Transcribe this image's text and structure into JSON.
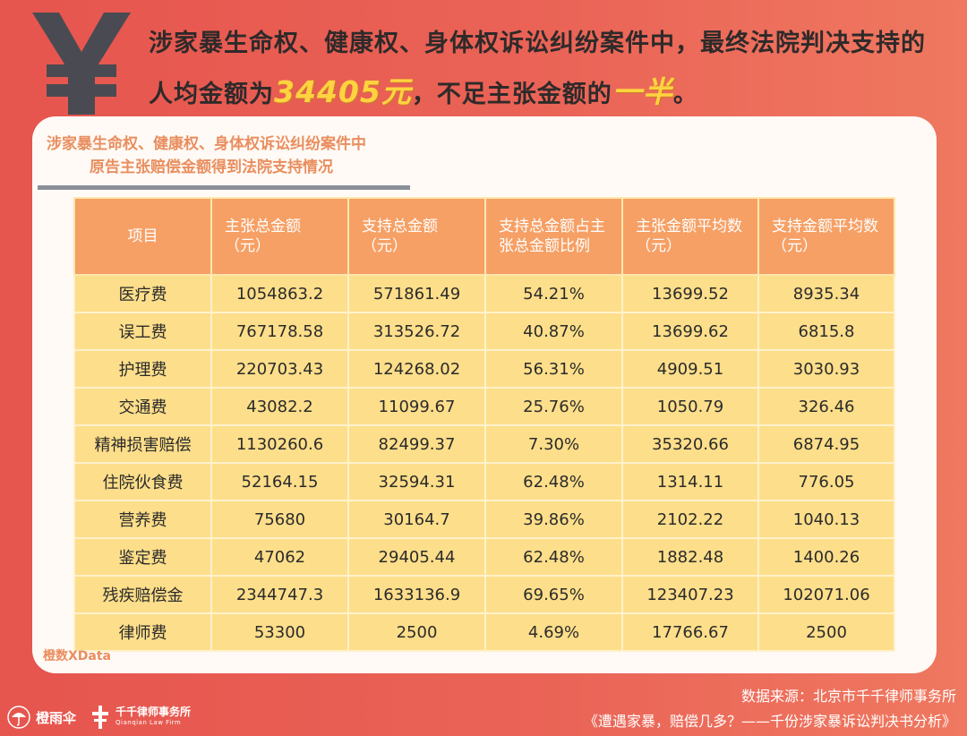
{
  "headline": {
    "part1": "涉家暴生命权、健康权、身体权诉讼纠纷案件中，最终法院判决支持的人均金额为",
    "amount": "34405元",
    "part2": "，不足主张金额的",
    "emphasis": "一半",
    "part3": "。"
  },
  "yen_icon": "yen-icon",
  "chart_data": {
    "type": "table",
    "title_line1": "涉家暴生命权、健康权、身体权诉讼纠纷案件中",
    "title_line2": "原告主张赔偿金额得到法院支持情况",
    "columns": [
      "项目",
      "主张总金额（元）",
      "支持总金额（元）",
      "支持总金额占主张总金额比例",
      "主张金额平均数（元）",
      "支持金额平均数（元）"
    ],
    "rows": [
      [
        "医疗费",
        "1054863.2",
        "571861.49",
        "54.21%",
        "13699.52",
        "8935.34"
      ],
      [
        "误工费",
        "767178.58",
        "313526.72",
        "40.87%",
        "13699.62",
        "6815.8"
      ],
      [
        "护理费",
        "220703.43",
        "124268.02",
        "56.31%",
        "4909.51",
        "3030.93"
      ],
      [
        "交通费",
        "43082.2",
        "11099.67",
        "25.76%",
        "1050.79",
        "326.46"
      ],
      [
        "精神损害赔偿",
        "1130260.6",
        "82499.37",
        "7.30%",
        "35320.66",
        "6874.95"
      ],
      [
        "住院伙食费",
        "52164.15",
        "32594.31",
        "62.48%",
        "1314.11",
        "776.05"
      ],
      [
        "营养费",
        "75680",
        "30164.7",
        "39.86%",
        "2102.22",
        "1040.13"
      ],
      [
        "鉴定费",
        "47062",
        "29405.44",
        "62.48%",
        "1882.48",
        "1400.26"
      ],
      [
        "残疾赔偿金",
        "2344747.3",
        "1633136.9",
        "69.65%",
        "123407.23",
        "102071.06"
      ],
      [
        "律师费",
        "53300",
        "2500",
        "4.69%",
        "17766.67",
        "2500"
      ]
    ],
    "colors": {
      "header_bg": "#f6a065",
      "cell_bg": "#fdde8a",
      "title": "#e98e5f"
    }
  },
  "source_tag": "橙数XData",
  "footer": {
    "brand1": "橙雨伞",
    "brand2_name": "千千律师事务所",
    "brand2_en": "Qianqian Law Firm",
    "credit_line1": "数据来源：北京市千千律师事务所",
    "credit_line2": "《遭遇家暴，赔偿几多？——千份涉家暴诉讼判决书分析》"
  },
  "colors": {
    "background": "#e95d52",
    "highlight": "#ffd33f",
    "card": "#fffaf5"
  }
}
